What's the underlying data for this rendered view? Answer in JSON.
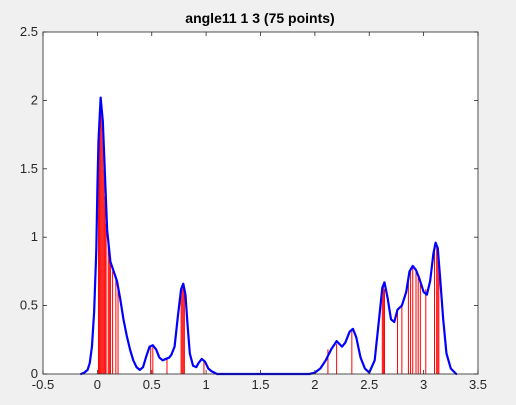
{
  "chart_data": {
    "type": "line",
    "title": "angle11 1 3 (75 points)",
    "xlabel": "",
    "ylabel": "",
    "xlim": [
      -0.5,
      3.5
    ],
    "ylim": [
      0,
      2.5
    ],
    "x_ticks": [
      -0.5,
      0,
      0.5,
      1,
      1.5,
      2,
      2.5,
      3,
      3.5
    ],
    "x_tick_labels": [
      "-0.5",
      "0",
      "0.5",
      "1",
      "1.5",
      "2",
      "2.5",
      "3",
      "3.5"
    ],
    "y_ticks": [
      0,
      0.5,
      1,
      1.5,
      2,
      2.5
    ],
    "y_tick_labels": [
      "0",
      "0.5",
      "1",
      "1.5",
      "2",
      "2.5"
    ],
    "grid": false,
    "colors": {
      "stems": "#ff0000",
      "curve": "#0000ff",
      "axes_bg": "#ffffff",
      "figure_bg": "#f0f0f0"
    },
    "series": [
      {
        "type": "line",
        "points": [
          [
            -0.15,
            0
          ],
          [
            -0.12,
            0.01
          ],
          [
            -0.09,
            0.03
          ],
          [
            -0.07,
            0.08
          ],
          [
            -0.05,
            0.2
          ],
          [
            -0.03,
            0.45
          ],
          [
            -0.01,
            0.9
          ],
          [
            0.0,
            1.35
          ],
          [
            0.01,
            1.7
          ],
          [
            0.03,
            2.02
          ],
          [
            0.05,
            1.85
          ],
          [
            0.07,
            1.45
          ],
          [
            0.09,
            1.05
          ],
          [
            0.12,
            0.82
          ],
          [
            0.15,
            0.75
          ],
          [
            0.18,
            0.68
          ],
          [
            0.21,
            0.55
          ],
          [
            0.24,
            0.4
          ],
          [
            0.27,
            0.28
          ],
          [
            0.3,
            0.18
          ],
          [
            0.33,
            0.1
          ],
          [
            0.36,
            0.05
          ],
          [
            0.39,
            0.03
          ],
          [
            0.42,
            0.05
          ],
          [
            0.45,
            0.13
          ],
          [
            0.48,
            0.2
          ],
          [
            0.51,
            0.21
          ],
          [
            0.54,
            0.18
          ],
          [
            0.57,
            0.12
          ],
          [
            0.6,
            0.1
          ],
          [
            0.63,
            0.11
          ],
          [
            0.66,
            0.12
          ],
          [
            0.68,
            0.14
          ],
          [
            0.71,
            0.2
          ],
          [
            0.74,
            0.42
          ],
          [
            0.77,
            0.62
          ],
          [
            0.79,
            0.66
          ],
          [
            0.81,
            0.58
          ],
          [
            0.83,
            0.35
          ],
          [
            0.85,
            0.15
          ],
          [
            0.88,
            0.06
          ],
          [
            0.91,
            0.05
          ],
          [
            0.93,
            0.08
          ],
          [
            0.96,
            0.11
          ],
          [
            0.99,
            0.09
          ],
          [
            1.02,
            0.04
          ],
          [
            1.05,
            0.02
          ],
          [
            1.1,
            0.0
          ],
          [
            1.6,
            0.0
          ],
          [
            1.95,
            0.0
          ],
          [
            2.0,
            0.01
          ],
          [
            2.05,
            0.04
          ],
          [
            2.1,
            0.1
          ],
          [
            2.15,
            0.18
          ],
          [
            2.2,
            0.24
          ],
          [
            2.25,
            0.2
          ],
          [
            2.28,
            0.23
          ],
          [
            2.32,
            0.31
          ],
          [
            2.35,
            0.33
          ],
          [
            2.38,
            0.27
          ],
          [
            2.42,
            0.12
          ],
          [
            2.46,
            0.04
          ],
          [
            2.5,
            0.01
          ],
          [
            2.55,
            0.1
          ],
          [
            2.59,
            0.4
          ],
          [
            2.62,
            0.63
          ],
          [
            2.64,
            0.67
          ],
          [
            2.67,
            0.55
          ],
          [
            2.7,
            0.4
          ],
          [
            2.73,
            0.38
          ],
          [
            2.76,
            0.47
          ],
          [
            2.8,
            0.5
          ],
          [
            2.84,
            0.6
          ],
          [
            2.87,
            0.75
          ],
          [
            2.9,
            0.79
          ],
          [
            2.93,
            0.76
          ],
          [
            2.96,
            0.7
          ],
          [
            3.0,
            0.6
          ],
          [
            3.03,
            0.58
          ],
          [
            3.06,
            0.68
          ],
          [
            3.09,
            0.88
          ],
          [
            3.11,
            0.96
          ],
          [
            3.13,
            0.92
          ],
          [
            3.15,
            0.72
          ],
          [
            3.18,
            0.4
          ],
          [
            3.21,
            0.15
          ],
          [
            3.25,
            0.04
          ],
          [
            3.3,
            0.0
          ]
        ]
      },
      {
        "type": "stem",
        "points": [
          [
            0.01,
            1.65
          ],
          [
            0.02,
            1.85
          ],
          [
            0.03,
            2.0
          ],
          [
            0.04,
            1.95
          ],
          [
            0.05,
            1.75
          ],
          [
            0.06,
            1.5
          ],
          [
            0.07,
            1.3
          ],
          [
            0.08,
            1.1
          ],
          [
            0.1,
            0.95
          ],
          [
            0.11,
            0.85
          ],
          [
            0.12,
            0.8
          ],
          [
            0.14,
            0.75
          ],
          [
            0.17,
            0.7
          ],
          [
            0.19,
            0.65
          ],
          [
            0.49,
            0.2
          ],
          [
            0.51,
            0.21
          ],
          [
            0.64,
            0.12
          ],
          [
            0.77,
            0.6
          ],
          [
            0.78,
            0.65
          ],
          [
            0.79,
            0.66
          ],
          [
            0.8,
            0.62
          ],
          [
            0.98,
            0.1
          ],
          [
            2.12,
            0.18
          ],
          [
            2.2,
            0.22
          ],
          [
            2.34,
            0.33
          ],
          [
            2.62,
            0.6
          ],
          [
            2.63,
            0.65
          ],
          [
            2.64,
            0.62
          ],
          [
            2.76,
            0.45
          ],
          [
            2.8,
            0.5
          ],
          [
            2.86,
            0.72
          ],
          [
            2.88,
            0.76
          ],
          [
            2.9,
            0.79
          ],
          [
            2.93,
            0.76
          ],
          [
            2.95,
            0.72
          ],
          [
            2.97,
            0.68
          ],
          [
            3.02,
            0.62
          ],
          [
            3.1,
            0.9
          ],
          [
            3.12,
            0.94
          ],
          [
            3.13,
            0.9
          ],
          [
            3.14,
            0.85
          ]
        ]
      }
    ]
  }
}
